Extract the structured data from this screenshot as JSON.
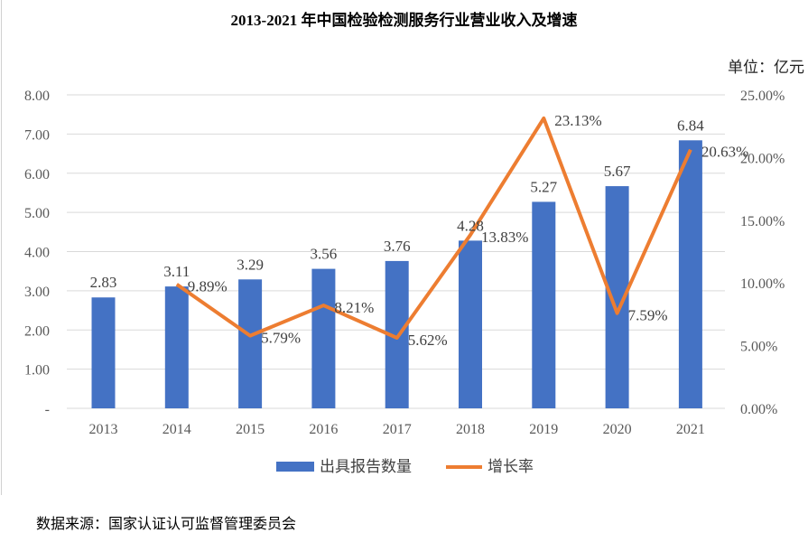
{
  "title": "2013-2021 年中国检验检测服务行业营业收入及增速",
  "unit": "单位：亿元",
  "source": "数据来源：国家认证认可监督管理委员会",
  "chart_data": {
    "type": "bar+line",
    "title": "2013-2021 年中国检验检测服务行业营业收入及增速",
    "categories": [
      "2013",
      "2014",
      "2015",
      "2016",
      "2017",
      "2018",
      "2019",
      "2020",
      "2021"
    ],
    "series": [
      {
        "name": "出具报告数量",
        "type": "bar",
        "axis": "left",
        "color": "#4472C4",
        "values": [
          2.83,
          3.11,
          3.29,
          3.56,
          3.76,
          4.28,
          5.27,
          5.67,
          6.84
        ],
        "labels": [
          "2.83",
          "3.11",
          "3.29",
          "3.56",
          "3.76",
          "4.28",
          "5.27",
          "5.67",
          "6.84"
        ]
      },
      {
        "name": "增长率",
        "type": "line",
        "axis": "right",
        "color": "#ED7D31",
        "values": [
          null,
          9.89,
          5.79,
          8.21,
          5.62,
          13.83,
          23.13,
          7.59,
          20.63
        ],
        "labels": [
          "",
          "9.89%",
          "5.79%",
          "8.21%",
          "5.62%",
          "13.83%",
          "23.13%",
          "7.59%",
          "20.63%"
        ]
      }
    ],
    "ylim": [
      0,
      8
    ],
    "y_ticks": [
      "-",
      "1.00",
      "2.00",
      "3.00",
      "4.00",
      "5.00",
      "6.00",
      "7.00",
      "8.00"
    ],
    "y2lim": [
      0,
      25
    ],
    "y2_ticks": [
      "0.00%",
      "5.00%",
      "10.00%",
      "15.00%",
      "20.00%",
      "25.00%"
    ],
    "grid": true,
    "legend": "bottom"
  }
}
